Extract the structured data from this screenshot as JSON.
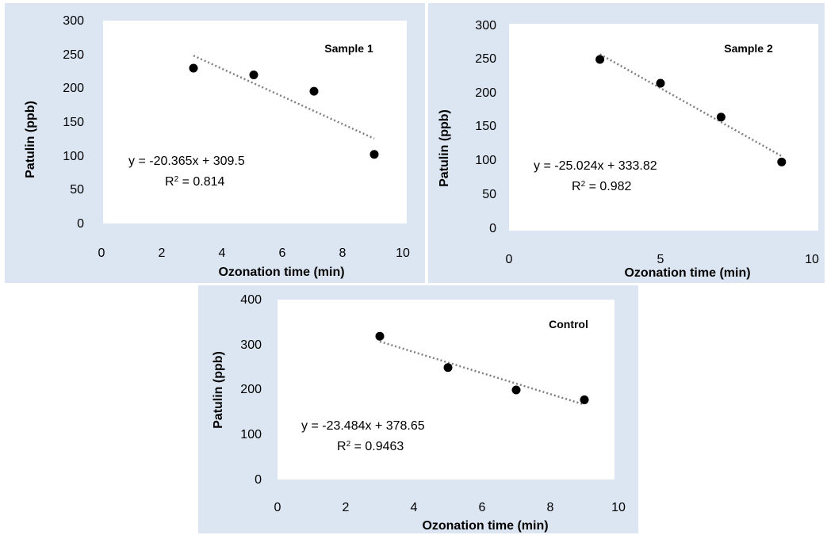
{
  "chart_data": [
    {
      "type": "scatter",
      "title": "",
      "xlabel": "Ozonation time (min)",
      "ylabel": "Patulin (ppb)",
      "xlim": [
        0,
        10
      ],
      "ylim": [
        0,
        300
      ],
      "xticks": [
        "0",
        "2",
        "4",
        "6",
        "8",
        "10"
      ],
      "yticks": [
        "0",
        "50",
        "100",
        "150",
        "200",
        "250",
        "300"
      ],
      "annotation": "Sample 1",
      "series": [
        {
          "x": [
            3,
            5,
            7,
            9
          ],
          "y": [
            230,
            220,
            196,
            103
          ]
        }
      ],
      "trendline": {
        "slope": -20.365,
        "intercept": 309.5,
        "x_range": [
          3,
          9
        ],
        "style": "dotted"
      },
      "equation": "y = -20.365x + 309.5",
      "r2_prefix": "R",
      "r2_exp": "2",
      "r2_value": " = 0.814",
      "grid": false,
      "colors": {
        "panel_bg": "#dce6f2",
        "plot_bg": "#ffffff",
        "marker": "#000000",
        "trendline": "#7f7f7f"
      }
    },
    {
      "type": "scatter",
      "title": "",
      "xlabel": "Ozonation time (min)",
      "ylabel": "Patulin (ppb)",
      "xlim": [
        0,
        10
      ],
      "ylim": [
        0,
        300
      ],
      "xticks": [
        "0",
        "5",
        "10"
      ],
      "yticks": [
        "0",
        "50",
        "100",
        "150",
        "200",
        "250",
        "300"
      ],
      "annotation": "Sample 2",
      "series": [
        {
          "x": [
            3,
            5,
            7,
            9
          ],
          "y": [
            251,
            216,
            166,
            100
          ]
        }
      ],
      "trendline": {
        "slope": -25.024,
        "intercept": 333.82,
        "x_range": [
          3,
          9
        ],
        "style": "dotted"
      },
      "equation": "y = -25.024x + 333.82",
      "r2_prefix": "R",
      "r2_exp": "2",
      "r2_value": " = 0.982",
      "grid": false,
      "colors": {
        "panel_bg": "#dce6f2",
        "plot_bg": "#ffffff",
        "marker": "#000000",
        "trendline": "#7f7f7f"
      }
    },
    {
      "type": "scatter",
      "title": "",
      "xlabel": "Ozonation time (min)",
      "ylabel": "Patulin (ppb)",
      "xlim": [
        0,
        10
      ],
      "ylim": [
        0,
        400
      ],
      "xticks": [
        "0",
        "2",
        "4",
        "6",
        "8",
        "10"
      ],
      "yticks": [
        "0",
        "100",
        "200",
        "300",
        "400"
      ],
      "annotation": "Control",
      "series": [
        {
          "x": [
            3,
            5,
            7,
            9
          ],
          "y": [
            320,
            250,
            200,
            178
          ]
        }
      ],
      "trendline": {
        "slope": -23.484,
        "intercept": 378.65,
        "x_range": [
          3,
          9
        ],
        "style": "dotted"
      },
      "equation": "y = -23.484x + 378.65",
      "r2_prefix": "R",
      "r2_exp": "2",
      "r2_value": " = 0.9463",
      "grid": false,
      "colors": {
        "panel_bg": "#dce6f2",
        "plot_bg": "#ffffff",
        "marker": "#000000",
        "trendline": "#7f7f7f"
      }
    }
  ]
}
